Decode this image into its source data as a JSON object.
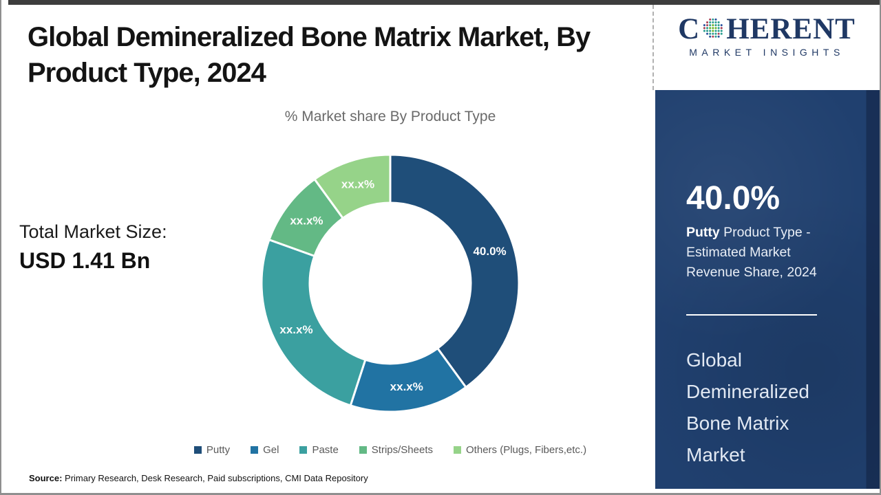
{
  "header": {
    "title_line1": "Global Demineralized Bone Matrix Market, By",
    "title_line2": "Product Type, 2024"
  },
  "logo": {
    "word_start": "C",
    "word_end": "HERENT",
    "subtitle": "MARKET INSIGHTS",
    "brand_color": "#1f3864",
    "globe_colors": [
      "#a93f55",
      "#2a9d8f",
      "#27509b",
      "#6ab42d"
    ]
  },
  "left_panel": {
    "total_label": "Total Market Size:",
    "total_value": "USD 1.41 Bn"
  },
  "chart_data": {
    "type": "pie",
    "subtype": "donut",
    "title": "% Market share By Product Type",
    "categories": [
      "Putty",
      "Gel",
      "Paste",
      "Strips/Sheets",
      "Others (Plugs, Fibers,etc.)"
    ],
    "values": [
      40.0,
      15.0,
      25.5,
      9.5,
      10.0
    ],
    "display_labels": [
      "40.0%",
      "xx.x%",
      "xx.x%",
      "xx.x%",
      "xx.x%"
    ],
    "colors": [
      "#1f4e79",
      "#2173a3",
      "#3ba0a0",
      "#63b985",
      "#96d389"
    ],
    "start_angle_deg": 0,
    "legend_position": "bottom"
  },
  "sidebar": {
    "background": "#20406f",
    "highlight_value": "40.0%",
    "highlight_bold": "Putty",
    "highlight_rest": " Product Type - Estimated Market Revenue Share, 2024",
    "market_name": "Global Demineralized Bone Matrix Market"
  },
  "footer": {
    "source_label": "Source:",
    "source_text": " Primary Research, Desk Research, Paid subscriptions, CMI Data Repository"
  }
}
